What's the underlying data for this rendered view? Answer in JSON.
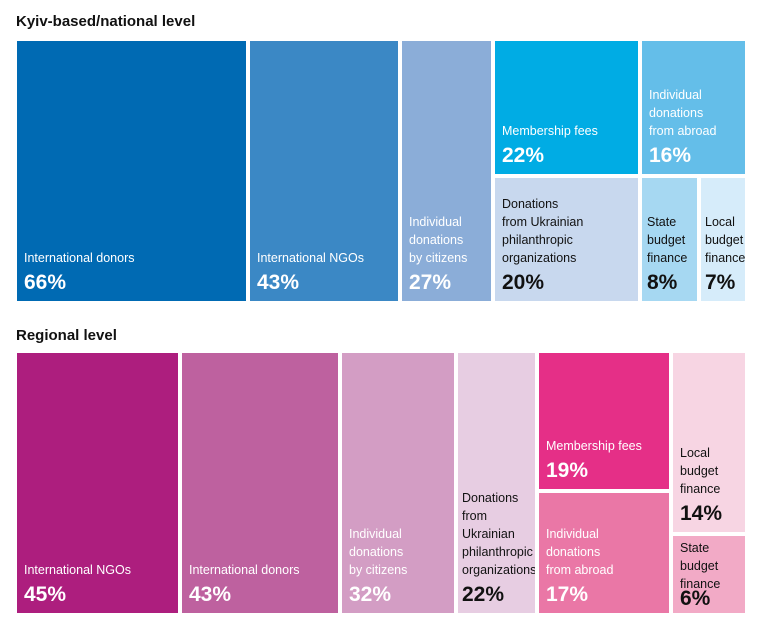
{
  "chart_data": [
    {
      "type": "treemap",
      "title": "Kyiv-based/national level",
      "items": [
        {
          "label": "International donors",
          "value": 66,
          "display": "66%",
          "color": "#006ab3"
        },
        {
          "label": "International NGOs",
          "value": 43,
          "display": "43%",
          "color": "#3b88c5"
        },
        {
          "label": "Individual\ndonations\nby citizens",
          "value": 27,
          "display": "27%",
          "color": "#8badd8"
        },
        {
          "label": "Membership fees",
          "value": 22,
          "display": "22%",
          "color": "#00ace4"
        },
        {
          "label": "Donations\nfrom Ukrainian\nphilanthropic\norganizations",
          "value": 20,
          "display": "20%",
          "color": "#c8d8ee"
        },
        {
          "label": "Individual\ndonations\nfrom abroad",
          "value": 16,
          "display": "16%",
          "color": "#64bee9"
        },
        {
          "label": "State\nbudget\nfinance",
          "value": 8,
          "display": "8%",
          "color": "#a6d8f2"
        },
        {
          "label": "Local\nbudget\nfinance",
          "value": 7,
          "display": "7%",
          "color": "#d6ecfa"
        }
      ]
    },
    {
      "type": "treemap",
      "title": "Regional level",
      "items": [
        {
          "label": "International NGOs",
          "value": 45,
          "display": "45%",
          "color": "#ad1e7e"
        },
        {
          "label": "International donors",
          "value": 43,
          "display": "43%",
          "color": "#be619f"
        },
        {
          "label": "Individual\ndonations\nby citizens",
          "value": 32,
          "display": "32%",
          "color": "#d39dc4"
        },
        {
          "label": "Donations\nfrom\nUkrainian\nphilanthropic\norganizations",
          "value": 22,
          "display": "22%",
          "color": "#e7cde2"
        },
        {
          "label": "Membership fees",
          "value": 19,
          "display": "19%",
          "color": "#e52f87"
        },
        {
          "label": "Individual\ndonations\nfrom abroad",
          "value": 17,
          "display": "17%",
          "color": "#ea77a6"
        },
        {
          "label": "Local\nbudget\nfinance",
          "value": 14,
          "display": "14%",
          "color": "#f7d5e3"
        },
        {
          "label": "State\nbudget\nfinance",
          "value": 6,
          "display": "6%",
          "color": "#f2aac6"
        }
      ]
    }
  ]
}
